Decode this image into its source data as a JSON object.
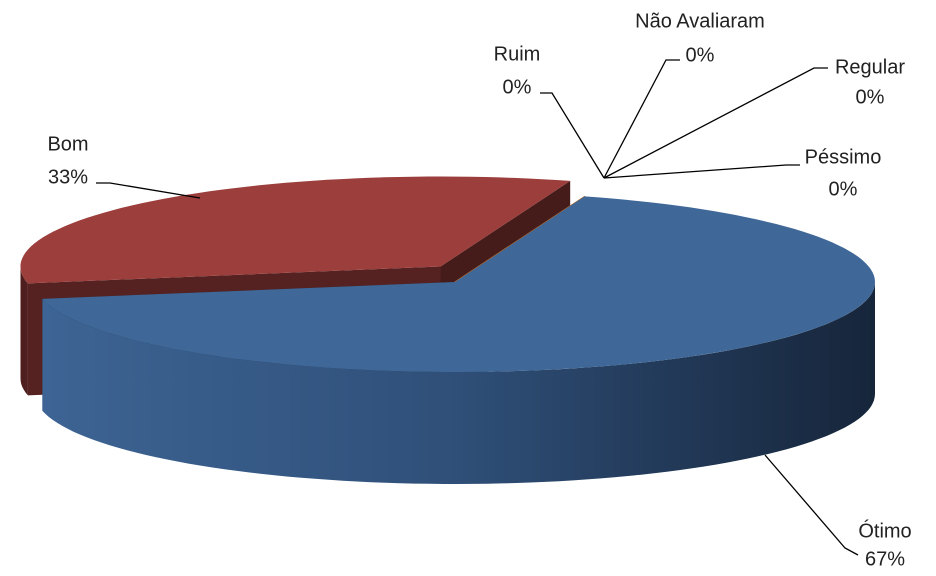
{
  "chart_data": {
    "type": "pie",
    "categories": [
      "Ótimo",
      "Bom",
      "Ruim",
      "Não Avaliaram",
      "Regular",
      "Péssimo"
    ],
    "values": [
      67,
      33,
      0,
      0,
      0,
      0
    ],
    "value_labels": [
      "67%",
      "33%",
      "0%",
      "0%",
      "0%",
      "0%"
    ],
    "colors": [
      "#3f6898",
      "#9c3e3c",
      "#c0732f",
      "#c0732f",
      "#c0732f",
      "#c0732f"
    ]
  }
}
